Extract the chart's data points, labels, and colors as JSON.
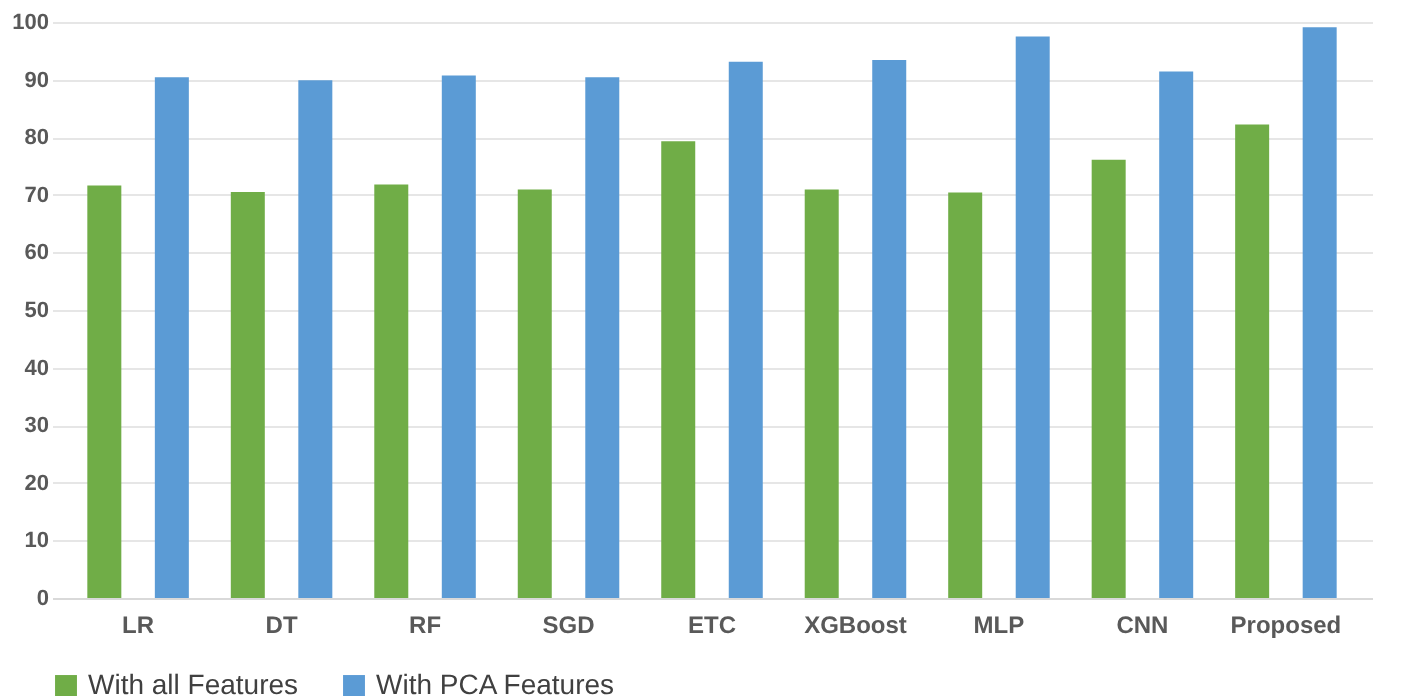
{
  "chart_data": {
    "type": "bar",
    "categories": [
      "LR",
      "DT",
      "RF",
      "SGD",
      "ETC",
      "XGBoost",
      "MLP",
      "CNN",
      "Proposed"
    ],
    "series": [
      {
        "name": "With all Features",
        "color": "#70ad47",
        "values": [
          71.6,
          70.5,
          71.8,
          70.9,
          79.3,
          70.9,
          70.4,
          76.1,
          82.2
        ]
      },
      {
        "name": "With PCA Features",
        "color": "#5b9bd5",
        "values": [
          90.4,
          89.9,
          90.7,
          90.4,
          93.1,
          93.4,
          97.5,
          91.4,
          99.1
        ]
      }
    ],
    "ylim": [
      0,
      100
    ],
    "yticks": [
      0,
      10,
      20,
      30,
      40,
      50,
      60,
      70,
      80,
      90,
      100
    ],
    "grid": "y",
    "legend": "bottom"
  }
}
